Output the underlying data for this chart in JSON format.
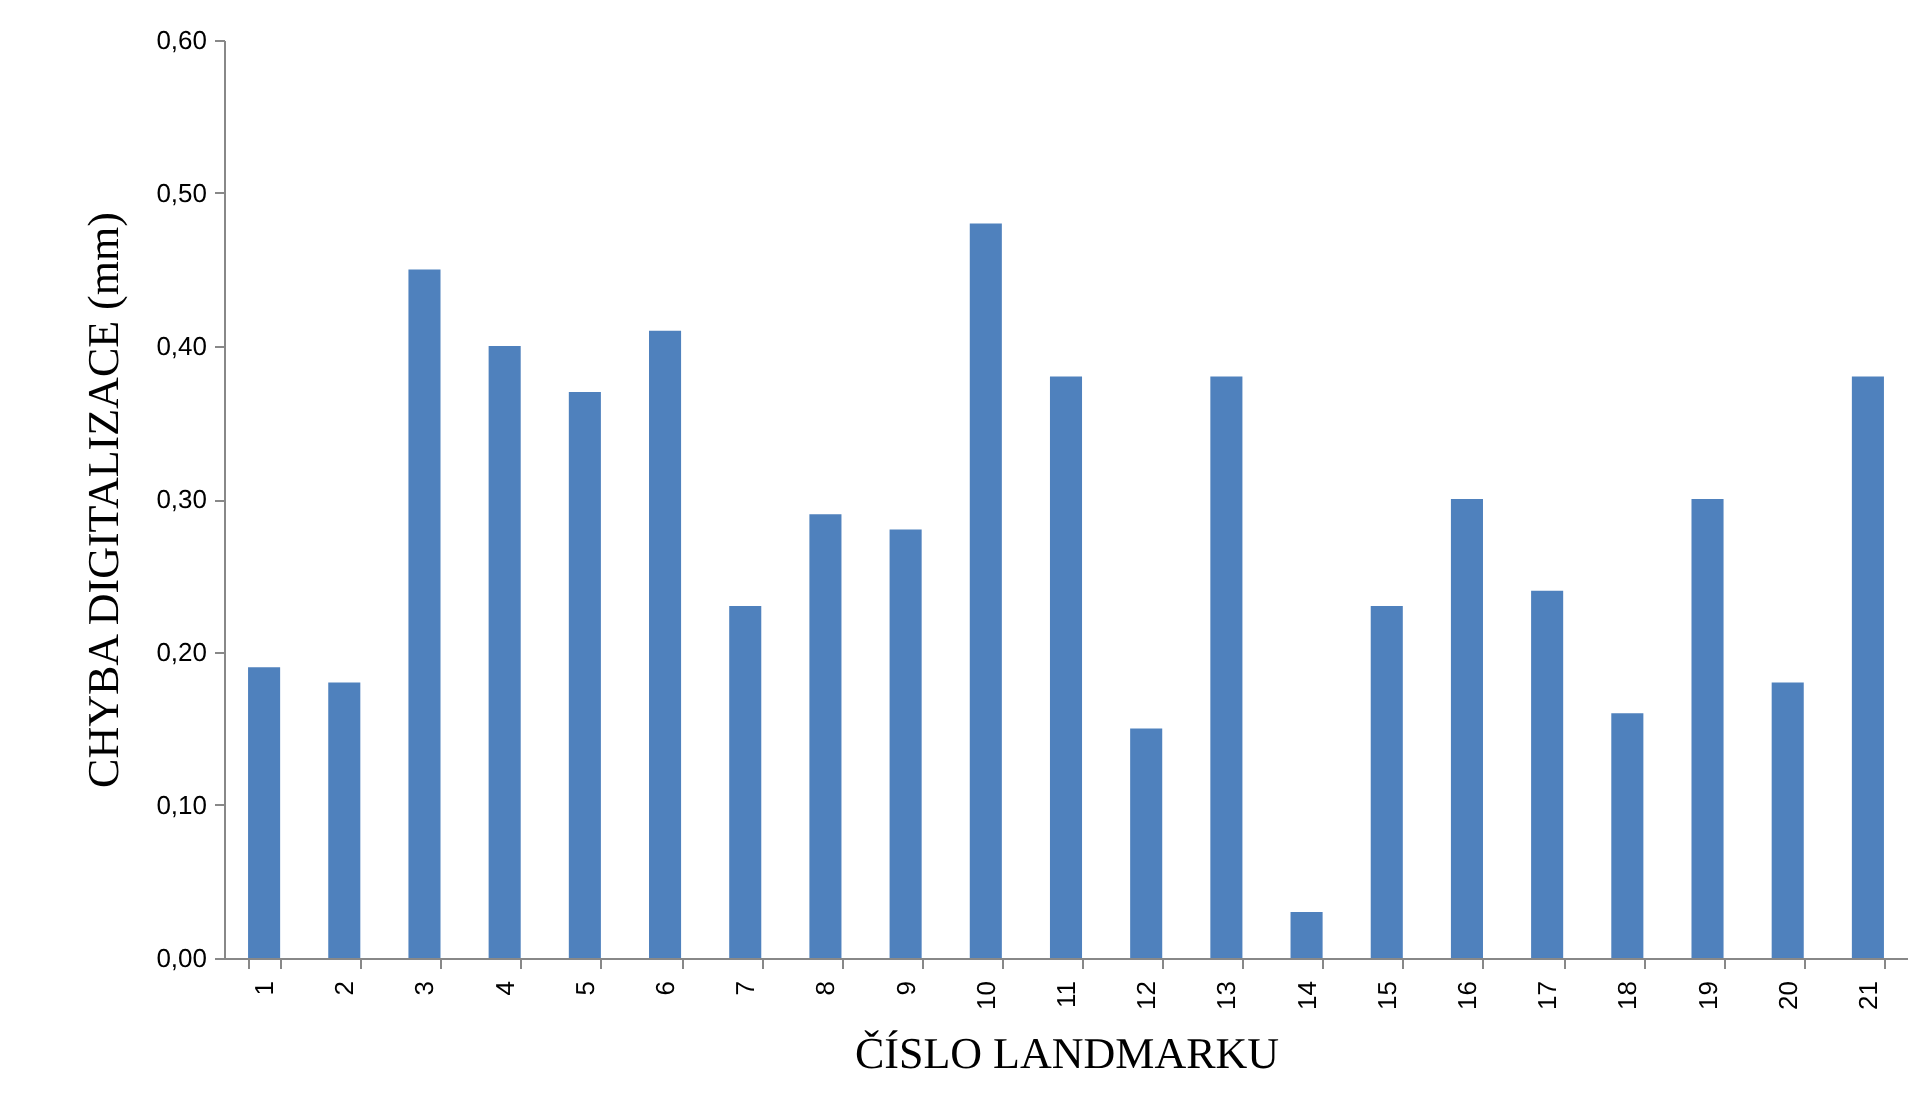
{
  "chart_data": {
    "type": "bar",
    "xlabel": "ČÍSLO LANDMARKU",
    "ylabel": "CHYBA DIGITALIZACE (mm)",
    "categories": [
      "1",
      "2",
      "3",
      "4",
      "5",
      "6",
      "7",
      "8",
      "9",
      "10",
      "11",
      "12",
      "13",
      "14",
      "15",
      "16",
      "17",
      "18",
      "19",
      "20",
      "21"
    ],
    "values": [
      0.19,
      0.18,
      0.45,
      0.4,
      0.37,
      0.41,
      0.23,
      0.29,
      0.28,
      0.48,
      0.38,
      0.15,
      0.38,
      0.03,
      0.23,
      0.3,
      0.24,
      0.16,
      0.3,
      0.18,
      0.38
    ],
    "color": "#4f81bd",
    "ylim": [
      0,
      0.6
    ],
    "yticks": [
      {
        "value": 0,
        "label": "0,00"
      },
      {
        "value": 0.1,
        "label": "0,10"
      },
      {
        "value": 0.2,
        "label": "0,20"
      },
      {
        "value": 0.3,
        "label": "0,30"
      },
      {
        "value": 0.4,
        "label": "0,40"
      },
      {
        "value": 0.5,
        "label": "0,50"
      },
      {
        "value": 0.6,
        "label": "0,60"
      }
    ]
  }
}
